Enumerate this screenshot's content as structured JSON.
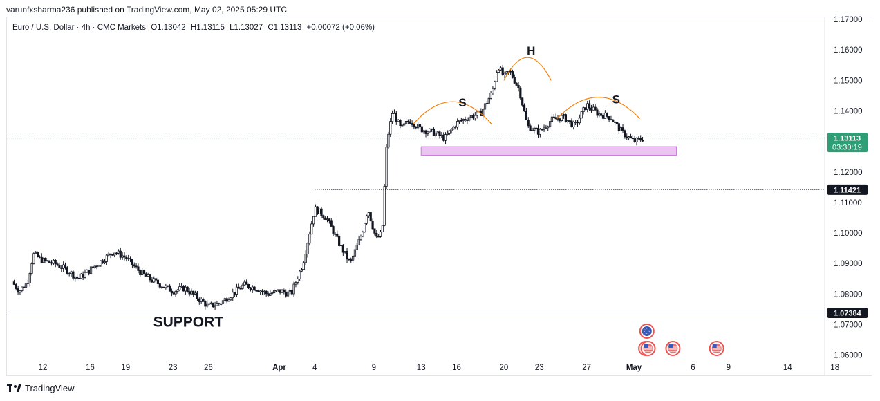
{
  "header": {
    "published": "varunfxsharma236 published on TradingView.com, May 02, 2025 05:29 UTC"
  },
  "legend": {
    "symbol": "Euro / U.S. Dollar · 4h · CMC Markets",
    "open": "O1.13042",
    "high": "H1.13115",
    "low": "L1.13027",
    "close": "C1.13113",
    "change": "+0.00072 (+0.06%)"
  },
  "footer": {
    "brand": "TradingView"
  },
  "colors": {
    "up": "#26a69a",
    "down": "#ef5350",
    "candle": "#131722",
    "arc": "#f57c00",
    "zone_fill": "#e9c5f0",
    "zone_stroke": "#c77dd6",
    "price_badge": "#2e9e76",
    "line_badge": "#131722"
  },
  "chart_data": {
    "type": "candlestick",
    "instrument": "EUR/USD",
    "timeframe": "4h",
    "y_axis": {
      "min": 1.059,
      "max": 1.17,
      "ticks": [
        "1.17000",
        "1.16000",
        "1.15000",
        "1.14000",
        "1.13000",
        "1.12000",
        "1.11000",
        "1.10000",
        "1.09000",
        "1.08000",
        "1.07000",
        "1.06000"
      ],
      "tick_values": [
        1.17,
        1.16,
        1.15,
        1.14,
        1.13,
        1.12,
        1.11,
        1.1,
        1.09,
        1.08,
        1.07,
        1.06
      ]
    },
    "x_axis": {
      "ticks": [
        {
          "label": "12",
          "bold": false,
          "day": 0
        },
        {
          "label": "16",
          "bold": false,
          "day": 4
        },
        {
          "label": "19",
          "bold": false,
          "day": 7
        },
        {
          "label": "23",
          "bold": false,
          "day": 11
        },
        {
          "label": "26",
          "bold": false,
          "day": 14
        },
        {
          "label": "Apr",
          "bold": true,
          "day": 20
        },
        {
          "label": "4",
          "bold": false,
          "day": 23
        },
        {
          "label": "9",
          "bold": false,
          "day": 28
        },
        {
          "label": "13",
          "bold": false,
          "day": 32
        },
        {
          "label": "16",
          "bold": false,
          "day": 35
        },
        {
          "label": "20",
          "bold": false,
          "day": 39
        },
        {
          "label": "23",
          "bold": false,
          "day": 42
        },
        {
          "label": "27",
          "bold": false,
          "day": 46
        },
        {
          "label": "May",
          "bold": true,
          "day": 50
        },
        {
          "label": "6",
          "bold": false,
          "day": 55
        },
        {
          "label": "9",
          "bold": false,
          "day": 58
        },
        {
          "label": "14",
          "bold": false,
          "day": 63
        },
        {
          "label": "18",
          "bold": false,
          "day": 67
        }
      ]
    },
    "price_path": [
      [
        -2.6,
        1.084
      ],
      [
        -2,
        1.081
      ],
      [
        -1.3,
        1.084
      ],
      [
        -0.8,
        1.093
      ],
      [
        0,
        1.091
      ],
      [
        1,
        1.09
      ],
      [
        2,
        1.088
      ],
      [
        3,
        1.085
      ],
      [
        4,
        1.088
      ],
      [
        5,
        1.091
      ],
      [
        6,
        1.094
      ],
      [
        7,
        1.092
      ],
      [
        8,
        1.088
      ],
      [
        9,
        1.085
      ],
      [
        10,
        1.083
      ],
      [
        11,
        1.081
      ],
      [
        12,
        1.082
      ],
      [
        13,
        1.079
      ],
      [
        14,
        1.076
      ],
      [
        15,
        1.077
      ],
      [
        16,
        1.08
      ],
      [
        17,
        1.083
      ],
      [
        18,
        1.082
      ],
      [
        19,
        1.08
      ],
      [
        20,
        1.081
      ],
      [
        21,
        1.08
      ],
      [
        22,
        1.09
      ],
      [
        23,
        1.108
      ],
      [
        24,
        1.105
      ],
      [
        25,
        1.097
      ],
      [
        26,
        1.09
      ],
      [
        27,
        1.1
      ],
      [
        27.5,
        1.108
      ],
      [
        28.2,
        1.098
      ],
      [
        28.7,
        1.1
      ],
      [
        29.1,
        1.13
      ],
      [
        29.6,
        1.14
      ],
      [
        30.3,
        1.134
      ],
      [
        31,
        1.137
      ],
      [
        32,
        1.134
      ],
      [
        33,
        1.133
      ],
      [
        34,
        1.131
      ],
      [
        35,
        1.136
      ],
      [
        36,
        1.138
      ],
      [
        37,
        1.139
      ],
      [
        38,
        1.146
      ],
      [
        38.5,
        1.155
      ],
      [
        39,
        1.151
      ],
      [
        39.5,
        1.153
      ],
      [
        40.3,
        1.147
      ],
      [
        41,
        1.135
      ],
      [
        42,
        1.133
      ],
      [
        43,
        1.137
      ],
      [
        44,
        1.138
      ],
      [
        45,
        1.135
      ],
      [
        46,
        1.142
      ],
      [
        47,
        1.139
      ],
      [
        48,
        1.138
      ],
      [
        49,
        1.133
      ],
      [
        50,
        1.13
      ],
      [
        50.8,
        1.131
      ]
    ],
    "current_price": {
      "value": 1.13113,
      "label": "1.13113",
      "countdown": "03:30:19"
    },
    "horizontal_lines": [
      {
        "value": 1.11421,
        "label": "1.11421",
        "style": "dotted",
        "from_day": 23
      },
      {
        "value": 1.07384,
        "label": "1.07384",
        "style": "solid"
      }
    ],
    "zone": {
      "from_day": 32,
      "to_day": 53.6,
      "low": 1.1255,
      "high": 1.1283
    },
    "pattern": {
      "name": "Head and Shoulders",
      "labels": [
        {
          "text": "S",
          "day": 35.5,
          "price": 1.1415
        },
        {
          "text": "H",
          "day": 41.3,
          "price": 1.1585
        },
        {
          "text": "S",
          "day": 48.5,
          "price": 1.1425
        }
      ],
      "arcs": [
        {
          "from_day": 31.3,
          "to_day": 38.0,
          "base": 1.1355,
          "peak": 1.143
        },
        {
          "from_day": 39.0,
          "to_day": 43.0,
          "base": 1.15,
          "peak": 1.1575
        },
        {
          "from_day": 43.5,
          "to_day": 50.5,
          "base": 1.1375,
          "peak": 1.1445
        }
      ]
    },
    "annotations": [
      {
        "text": "SUPPORT",
        "day": 12.3,
        "price": 1.0693
      }
    ],
    "events": [
      {
        "type": "EU",
        "day": 51.1,
        "row": 1
      },
      {
        "type": "US",
        "day": 51.0,
        "row": 2
      },
      {
        "type": "US",
        "day": 51.2,
        "row": 2
      },
      {
        "type": "US",
        "day": 53.3,
        "row": 2
      },
      {
        "type": "US",
        "day": 57.0,
        "row": 2
      }
    ]
  }
}
